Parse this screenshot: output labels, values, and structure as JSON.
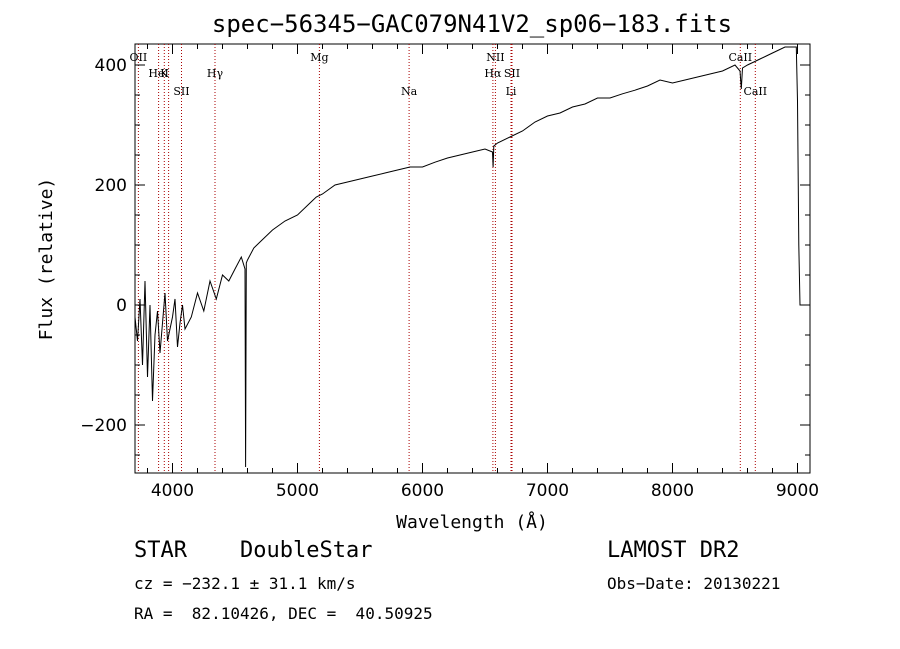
{
  "chart_data": {
    "type": "line",
    "title": "spec−56345−GAC079N41V2_sp06−183.fits",
    "xlabel": "Wavelength (Å)",
    "ylabel": "Flux (relative)",
    "xlim": [
      3700,
      9100
    ],
    "ylim": [
      -280,
      435
    ],
    "xticks": [
      4000,
      5000,
      6000,
      7000,
      8000,
      9000
    ],
    "yticks": [
      -200,
      0,
      200,
      400
    ],
    "ytick_labels": [
      "−200",
      "0",
      "200",
      "400"
    ],
    "grid": false,
    "line_color": "#000000",
    "marker_color": "#aa0000",
    "series": [
      {
        "x": [
          3700,
          3720,
          3740,
          3760,
          3780,
          3800,
          3820,
          3840,
          3860,
          3880,
          3900,
          3920,
          3940,
          3960,
          3980,
          4000,
          4020,
          4040,
          4060,
          4080,
          4100,
          4150,
          4200,
          4250,
          4300,
          4350,
          4400,
          4450,
          4500,
          4550,
          4580,
          4585,
          4590,
          4600,
          4650,
          4700,
          4800,
          4900,
          5000,
          5100,
          5150,
          5200,
          5300,
          5400,
          5500,
          5600,
          5700,
          5800,
          5900,
          6000,
          6100,
          6200,
          6300,
          6400,
          6500,
          6560,
          6565,
          6570,
          6600,
          6700,
          6800,
          6900,
          7000,
          7100,
          7200,
          7300,
          7400,
          7500,
          7600,
          7700,
          7800,
          7900,
          8000,
          8100,
          8200,
          8300,
          8400,
          8500,
          8540,
          8550,
          8560,
          8600,
          8650,
          8700,
          8750,
          8800,
          8850,
          8900,
          8950,
          8990,
          9000,
          9010,
          9020,
          9030,
          9040
        ],
        "y": [
          -20,
          -60,
          10,
          -100,
          40,
          -120,
          0,
          -160,
          -50,
          -10,
          -80,
          -30,
          20,
          -60,
          -40,
          -20,
          10,
          -70,
          -30,
          0,
          -40,
          -20,
          20,
          -10,
          40,
          10,
          50,
          40,
          60,
          80,
          60,
          -270,
          70,
          75,
          95,
          105,
          125,
          140,
          150,
          170,
          180,
          185,
          200,
          205,
          210,
          215,
          220,
          225,
          230,
          230,
          238,
          245,
          250,
          255,
          260,
          255,
          230,
          265,
          270,
          280,
          290,
          305,
          315,
          320,
          330,
          335,
          345,
          345,
          352,
          358,
          365,
          375,
          370,
          375,
          380,
          385,
          390,
          400,
          390,
          360,
          395,
          400,
          405,
          410,
          415,
          420,
          425,
          430,
          430,
          430,
          340,
          100,
          0,
          0,
          0
        ]
      }
    ],
    "markers_top": [
      {
        "label": "OII",
        "x": 3727
      },
      {
        "label": "K",
        "x": 3934
      },
      {
        "label": "HeI",
        "x": 3889
      },
      {
        "label": "SII",
        "x": 4072
      },
      {
        "label": "Hγ",
        "x": 4340
      },
      {
        "label": "Mg",
        "x": 5175
      },
      {
        "label": "Na",
        "x": 5893
      },
      {
        "label": "NII",
        "x": 6583
      },
      {
        "label": "Hα",
        "x": 6563
      },
      {
        "label": "SII",
        "x": 6716
      },
      {
        "label": "Li",
        "x": 6708
      },
      {
        "label": "CaII",
        "x": 8542
      },
      {
        "label": "CaII",
        "x": 8662
      }
    ],
    "marker_lines": [
      3727,
      3889,
      3934,
      3969,
      4072,
      4340,
      5175,
      5893,
      6563,
      6583,
      6708,
      6716,
      8542,
      8662
    ]
  },
  "info": {
    "class": "STAR",
    "subclass": "DoubleStar",
    "survey": "LAMOST DR2",
    "cz": "cz = −232.1 ± 31.1 km/s",
    "obsdate": "Obs−Date: 20130221",
    "radec": "RA =  82.10426, DEC =  40.50925"
  }
}
